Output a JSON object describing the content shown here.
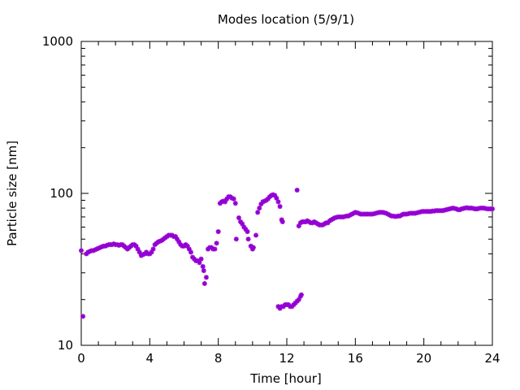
{
  "chart_data": {
    "type": "scatter",
    "title": "Modes location (5/9/1)",
    "xlabel": "Time [hour]",
    "ylabel": "Particle size [nm]",
    "xlim": [
      0,
      24
    ],
    "ylim": [
      10,
      1000
    ],
    "yscale": "log",
    "grid": false,
    "legend": "none",
    "marker_color": "#9400d3",
    "marker": "star",
    "x_ticks": [
      0,
      4,
      8,
      12,
      16,
      20,
      24
    ],
    "x_tick_labels": [
      "0",
      "4",
      "8",
      "12",
      "16",
      "20",
      "24"
    ],
    "y_ticks": [
      10,
      100,
      1000
    ],
    "y_tick_labels": [
      "10",
      "100",
      "1000"
    ],
    "series": [
      {
        "points": [
          [
            0.0,
            42
          ],
          [
            0.1,
            15.5
          ],
          [
            0.3,
            40
          ],
          [
            0.4,
            41
          ],
          [
            0.5,
            41.5
          ],
          [
            0.6,
            42
          ],
          [
            0.7,
            42
          ],
          [
            0.8,
            42.5
          ],
          [
            0.9,
            43
          ],
          [
            1.0,
            43.5
          ],
          [
            1.1,
            44
          ],
          [
            1.2,
            44.5
          ],
          [
            1.3,
            45
          ],
          [
            1.4,
            45
          ],
          [
            1.5,
            45.5
          ],
          [
            1.6,
            46
          ],
          [
            1.7,
            46
          ],
          [
            1.8,
            46
          ],
          [
            1.9,
            46.5
          ],
          [
            2.0,
            46
          ],
          [
            2.1,
            46
          ],
          [
            2.2,
            45.5
          ],
          [
            2.3,
            46
          ],
          [
            2.4,
            46
          ],
          [
            2.5,
            45
          ],
          [
            2.6,
            44
          ],
          [
            2.7,
            43
          ],
          [
            2.8,
            44
          ],
          [
            2.9,
            45
          ],
          [
            3.0,
            46
          ],
          [
            3.1,
            46
          ],
          [
            3.2,
            45
          ],
          [
            3.3,
            43
          ],
          [
            3.4,
            41
          ],
          [
            3.5,
            39
          ],
          [
            3.6,
            39.5
          ],
          [
            3.7,
            40
          ],
          [
            3.8,
            41
          ],
          [
            3.9,
            40
          ],
          [
            4.0,
            40
          ],
          [
            4.1,
            41
          ],
          [
            4.2,
            43
          ],
          [
            4.3,
            46
          ],
          [
            4.4,
            47
          ],
          [
            4.5,
            48
          ],
          [
            4.6,
            48.5
          ],
          [
            4.7,
            49
          ],
          [
            4.8,
            50
          ],
          [
            4.9,
            51
          ],
          [
            5.0,
            52
          ],
          [
            5.1,
            53
          ],
          [
            5.2,
            53
          ],
          [
            5.3,
            53
          ],
          [
            5.4,
            52
          ],
          [
            5.5,
            52
          ],
          [
            5.6,
            50
          ],
          [
            5.7,
            48
          ],
          [
            5.8,
            46
          ],
          [
            5.9,
            45
          ],
          [
            6.0,
            45
          ],
          [
            6.1,
            46
          ],
          [
            6.2,
            45
          ],
          [
            6.3,
            43
          ],
          [
            6.4,
            41
          ],
          [
            6.5,
            38
          ],
          [
            6.6,
            37
          ],
          [
            6.7,
            36
          ],
          [
            6.8,
            36
          ],
          [
            6.9,
            35
          ],
          [
            7.0,
            37
          ],
          [
            7.1,
            33
          ],
          [
            7.15,
            31
          ],
          [
            7.2,
            25.5
          ],
          [
            7.3,
            28
          ],
          [
            7.4,
            43
          ],
          [
            7.5,
            44
          ],
          [
            7.6,
            44
          ],
          [
            7.7,
            43
          ],
          [
            7.8,
            43
          ],
          [
            7.9,
            47
          ],
          [
            8.0,
            56
          ],
          [
            8.1,
            86
          ],
          [
            8.2,
            88
          ],
          [
            8.3,
            89
          ],
          [
            8.4,
            88
          ],
          [
            8.5,
            92
          ],
          [
            8.6,
            95
          ],
          [
            8.7,
            95
          ],
          [
            8.8,
            93
          ],
          [
            8.9,
            92
          ],
          [
            9.0,
            86
          ],
          [
            9.05,
            50
          ],
          [
            9.2,
            69
          ],
          [
            9.3,
            65
          ],
          [
            9.4,
            63
          ],
          [
            9.5,
            60
          ],
          [
            9.6,
            58
          ],
          [
            9.7,
            56
          ],
          [
            9.75,
            50
          ],
          [
            9.9,
            45
          ],
          [
            10.0,
            43
          ],
          [
            10.05,
            44
          ],
          [
            10.2,
            53
          ],
          [
            10.3,
            75
          ],
          [
            10.4,
            80
          ],
          [
            10.5,
            85
          ],
          [
            10.6,
            88
          ],
          [
            10.7,
            89
          ],
          [
            10.8,
            90
          ],
          [
            10.9,
            92
          ],
          [
            11.0,
            95
          ],
          [
            11.1,
            97
          ],
          [
            11.2,
            98
          ],
          [
            11.3,
            97
          ],
          [
            11.4,
            93
          ],
          [
            11.5,
            88
          ],
          [
            11.6,
            82
          ],
          [
            11.7,
            67
          ],
          [
            11.75,
            65
          ],
          [
            11.5,
            18
          ],
          [
            11.6,
            17.5
          ],
          [
            11.7,
            18
          ],
          [
            11.8,
            18
          ],
          [
            11.9,
            18.5
          ],
          [
            12.0,
            18.5
          ],
          [
            12.1,
            18.5
          ],
          [
            12.2,
            18
          ],
          [
            12.3,
            18
          ],
          [
            12.4,
            18.5
          ],
          [
            12.5,
            19
          ],
          [
            12.6,
            19.5
          ],
          [
            12.7,
            20
          ],
          [
            12.8,
            21
          ],
          [
            12.85,
            21.5
          ],
          [
            12.6,
            105
          ],
          [
            12.7,
            61
          ],
          [
            12.8,
            64
          ],
          [
            12.9,
            65
          ],
          [
            13.0,
            65
          ],
          [
            13.1,
            65
          ],
          [
            13.2,
            66
          ],
          [
            13.3,
            65
          ],
          [
            13.4,
            64
          ],
          [
            13.5,
            64
          ],
          [
            13.6,
            65
          ],
          [
            13.7,
            64
          ],
          [
            13.8,
            63
          ],
          [
            13.9,
            62
          ],
          [
            14.0,
            62
          ],
          [
            14.1,
            62
          ],
          [
            14.2,
            63
          ],
          [
            14.3,
            64
          ],
          [
            14.4,
            64
          ],
          [
            14.5,
            66
          ],
          [
            14.6,
            67
          ],
          [
            14.7,
            68
          ],
          [
            14.8,
            69
          ],
          [
            14.9,
            69.5
          ],
          [
            15.0,
            70
          ],
          [
            15.1,
            70
          ],
          [
            15.2,
            70
          ],
          [
            15.3,
            70
          ],
          [
            15.4,
            70.5
          ],
          [
            15.5,
            71
          ],
          [
            15.6,
            71
          ],
          [
            15.7,
            72
          ],
          [
            15.8,
            73
          ],
          [
            15.9,
            74
          ],
          [
            16.0,
            75
          ],
          [
            16.1,
            74.5
          ],
          [
            16.2,
            74
          ],
          [
            16.3,
            73
          ],
          [
            16.4,
            73
          ],
          [
            16.5,
            73
          ],
          [
            16.6,
            73
          ],
          [
            16.7,
            73
          ],
          [
            16.8,
            73
          ],
          [
            16.9,
            73
          ],
          [
            17.0,
            73
          ],
          [
            17.1,
            73.5
          ],
          [
            17.2,
            74
          ],
          [
            17.3,
            74.5
          ],
          [
            17.4,
            75
          ],
          [
            17.5,
            75
          ],
          [
            17.6,
            75
          ],
          [
            17.7,
            74.5
          ],
          [
            17.8,
            74
          ],
          [
            17.9,
            73
          ],
          [
            18.0,
            72
          ],
          [
            18.1,
            71
          ],
          [
            18.2,
            71
          ],
          [
            18.3,
            70.5
          ],
          [
            18.4,
            70.5
          ],
          [
            18.5,
            71
          ],
          [
            18.6,
            71
          ],
          [
            18.7,
            72
          ],
          [
            18.8,
            73
          ],
          [
            18.9,
            73
          ],
          [
            19.0,
            73
          ],
          [
            19.1,
            73.5
          ],
          [
            19.2,
            74
          ],
          [
            19.3,
            74
          ],
          [
            19.4,
            74
          ],
          [
            19.5,
            74
          ],
          [
            19.6,
            74.5
          ],
          [
            19.7,
            75
          ],
          [
            19.8,
            75.5
          ],
          [
            19.9,
            76
          ],
          [
            20.0,
            76
          ],
          [
            20.1,
            76
          ],
          [
            20.2,
            76
          ],
          [
            20.3,
            76
          ],
          [
            20.4,
            76
          ],
          [
            20.5,
            76.5
          ],
          [
            20.6,
            76.5
          ],
          [
            20.7,
            77
          ],
          [
            20.8,
            77
          ],
          [
            20.9,
            77
          ],
          [
            21.0,
            77
          ],
          [
            21.1,
            77
          ],
          [
            21.2,
            77.5
          ],
          [
            21.3,
            78
          ],
          [
            21.4,
            78.5
          ],
          [
            21.5,
            79
          ],
          [
            21.6,
            79.5
          ],
          [
            21.7,
            80
          ],
          [
            21.8,
            79.5
          ],
          [
            21.9,
            79
          ],
          [
            22.0,
            78
          ],
          [
            22.1,
            78
          ],
          [
            22.2,
            79
          ],
          [
            22.3,
            79.5
          ],
          [
            22.4,
            80
          ],
          [
            22.5,
            80.5
          ],
          [
            22.6,
            80
          ],
          [
            22.7,
            80
          ],
          [
            22.8,
            80
          ],
          [
            22.9,
            79.5
          ],
          [
            23.0,
            79
          ],
          [
            23.1,
            79
          ],
          [
            23.2,
            79.5
          ],
          [
            23.3,
            80
          ],
          [
            23.4,
            80
          ],
          [
            23.5,
            80
          ],
          [
            23.6,
            79.5
          ],
          [
            23.7,
            79
          ],
          [
            23.8,
            79
          ],
          [
            23.9,
            79
          ],
          [
            24.0,
            79
          ]
        ]
      }
    ]
  }
}
